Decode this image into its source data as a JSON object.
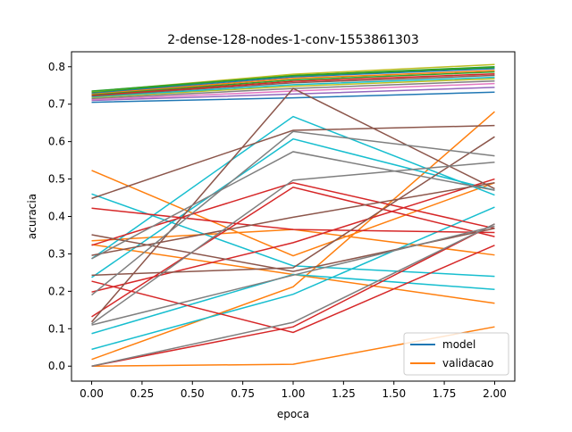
{
  "chart_data": {
    "type": "line",
    "title": "2-dense-128-nodes-1-conv-1553861303",
    "xlabel": "epoca",
    "ylabel": "acuracia",
    "xlim": [
      -0.1,
      2.1
    ],
    "ylim": [
      -0.04,
      0.84
    ],
    "x": [
      0.0,
      1.0,
      2.0
    ],
    "xticks": [
      "0.00",
      "0.25",
      "0.50",
      "0.75",
      "1.00",
      "1.25",
      "1.50",
      "1.75",
      "2.00"
    ],
    "yticks": [
      "0.0",
      "0.1",
      "0.2",
      "0.3",
      "0.4",
      "0.5",
      "0.6",
      "0.7",
      "0.8"
    ],
    "grid": false,
    "legend": {
      "position": "lower-right",
      "entries": [
        {
          "label": "model",
          "color": "#1f77b4"
        },
        {
          "label": "validacao",
          "color": "#ff7f0e"
        }
      ]
    },
    "series": [
      {
        "values": [
          0.705,
          0.717,
          0.732
        ],
        "color": "#1f77b4"
      },
      {
        "values": [
          0.71,
          0.727,
          0.745
        ],
        "color": "#9467bd"
      },
      {
        "values": [
          0.712,
          0.735,
          0.755
        ],
        "color": "#e377c2"
      },
      {
        "values": [
          0.715,
          0.742,
          0.762
        ],
        "color": "#7f7f7f"
      },
      {
        "values": [
          0.718,
          0.748,
          0.768
        ],
        "color": "#bcbd22"
      },
      {
        "values": [
          0.72,
          0.752,
          0.772
        ],
        "color": "#17becf"
      },
      {
        "values": [
          0.722,
          0.757,
          0.777
        ],
        "color": "#8c564b"
      },
      {
        "values": [
          0.724,
          0.761,
          0.781
        ],
        "color": "#d62728"
      },
      {
        "values": [
          0.726,
          0.765,
          0.786
        ],
        "color": "#2ca02c"
      },
      {
        "values": [
          0.728,
          0.769,
          0.79
        ],
        "color": "#ff7f0e"
      },
      {
        "values": [
          0.73,
          0.773,
          0.795
        ],
        "color": "#1f77b4"
      },
      {
        "values": [
          0.732,
          0.777,
          0.8
        ],
        "color": "#2ca02c"
      },
      {
        "values": [
          0.734,
          0.78,
          0.806
        ],
        "color": "#bcbd22"
      },
      {
        "values": [
          0.735,
          0.776,
          0.798
        ],
        "color": "#2ca02c"
      },
      {
        "values": [
          0.523,
          0.295,
          0.49
        ],
        "color": "#ff7f0e"
      },
      {
        "values": [
          0.0,
          0.005,
          0.105
        ],
        "color": "#ff7f0e"
      },
      {
        "values": [
          0.018,
          0.212,
          0.68
        ],
        "color": "#ff7f0e"
      },
      {
        "values": [
          0.335,
          0.365,
          0.297
        ],
        "color": "#ff7f0e"
      },
      {
        "values": [
          0.325,
          0.245,
          0.168
        ],
        "color": "#ff7f0e"
      },
      {
        "values": [
          0.46,
          0.268,
          0.24
        ],
        "color": "#17becf"
      },
      {
        "values": [
          0.287,
          0.667,
          0.457
        ],
        "color": "#17becf"
      },
      {
        "values": [
          0.237,
          0.607,
          0.47
        ],
        "color": "#17becf"
      },
      {
        "values": [
          0.087,
          0.245,
          0.205
        ],
        "color": "#17becf"
      },
      {
        "values": [
          0.045,
          0.192,
          0.425
        ],
        "color": "#17becf"
      },
      {
        "values": [
          0.422,
          0.365,
          0.357
        ],
        "color": "#d62728"
      },
      {
        "values": [
          0.323,
          0.49,
          0.368
        ],
        "color": "#d62728"
      },
      {
        "values": [
          0.227,
          0.09,
          0.323
        ],
        "color": "#d62728"
      },
      {
        "values": [
          0.132,
          0.478,
          0.346
        ],
        "color": "#d62728"
      },
      {
        "values": [
          0.0,
          0.105,
          0.38
        ],
        "color": "#d62728"
      },
      {
        "values": [
          0.198,
          0.33,
          0.5
        ],
        "color": "#d62728"
      },
      {
        "values": [
          0.448,
          0.63,
          0.643
        ],
        "color": "#8c564b"
      },
      {
        "values": [
          0.351,
          0.253,
          0.368
        ],
        "color": "#8c564b"
      },
      {
        "values": [
          0.296,
          0.398,
          0.49
        ],
        "color": "#8c564b"
      },
      {
        "values": [
          0.118,
          0.742,
          0.474
        ],
        "color": "#8c564b"
      },
      {
        "values": [
          0.243,
          0.263,
          0.613
        ],
        "color": "#8c564b"
      },
      {
        "values": [
          0.19,
          0.627,
          0.562
        ],
        "color": "#7f7f7f"
      },
      {
        "values": [
          0.287,
          0.573,
          0.47
        ],
        "color": "#7f7f7f"
      },
      {
        "values": [
          0.113,
          0.497,
          0.545
        ],
        "color": "#7f7f7f"
      },
      {
        "values": [
          0.11,
          0.243,
          0.374
        ],
        "color": "#7f7f7f"
      },
      {
        "values": [
          0.0,
          0.117,
          0.38
        ],
        "color": "#7f7f7f"
      }
    ]
  }
}
